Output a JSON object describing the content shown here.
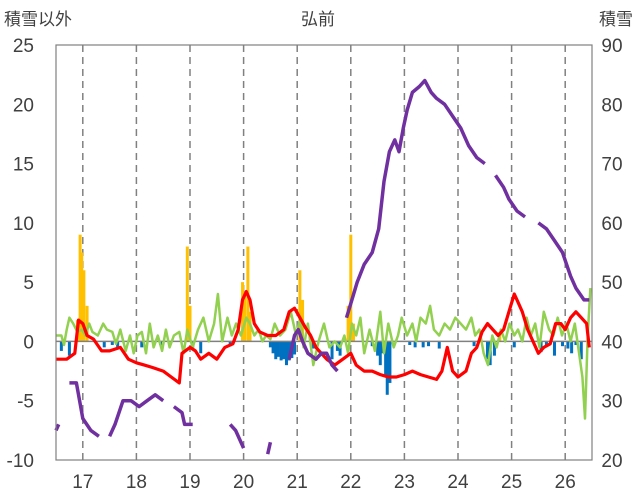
{
  "chart_data": {
    "type": "bar+line",
    "title": "弘前",
    "left_axis_title": "積雪以外",
    "right_axis_title": "積雪",
    "left_ylim": [
      -10,
      25
    ],
    "left_ticks": [
      -10,
      -5,
      0,
      5,
      10,
      15,
      20,
      25
    ],
    "right_ylim": [
      20,
      90
    ],
    "right_ticks": [
      20,
      30,
      40,
      50,
      60,
      70,
      80,
      90
    ],
    "x_ticks": [
      "17",
      "18",
      "19",
      "20",
      "21",
      "22",
      "23",
      "24",
      "25",
      "26"
    ],
    "xlim": [
      16.5,
      26.5
    ],
    "grid": "vertical dashed at each year",
    "colors": {
      "precip_positive": "#FFC000",
      "precip_negative": "#0070C0",
      "red_line": "#FF0000",
      "green_line": "#92D050",
      "purple_line": "#7030A0",
      "grid": "#808080",
      "axis_text": "#404040"
    },
    "series_purple_snow_depth_right_axis": [
      [
        16.5,
        25
      ],
      [
        16.55,
        26
      ],
      [
        16.75,
        33
      ],
      [
        16.88,
        33
      ],
      [
        17.0,
        27
      ],
      [
        17.15,
        25
      ],
      [
        17.3,
        24
      ],
      [
        17.5,
        24
      ],
      [
        17.6,
        26
      ],
      [
        17.75,
        30
      ],
      [
        17.9,
        30
      ],
      [
        18.05,
        29
      ],
      [
        18.2,
        30
      ],
      [
        18.35,
        31
      ],
      [
        18.5,
        30
      ],
      [
        18.7,
        29
      ],
      [
        18.85,
        28
      ],
      [
        18.9,
        26
      ],
      [
        19.05,
        26
      ],
      [
        19.3,
        26
      ],
      [
        19.5,
        26
      ],
      [
        19.75,
        26
      ],
      [
        19.85,
        25
      ],
      [
        20.0,
        22
      ],
      [
        20.2,
        21
      ],
      [
        20.45,
        21
      ],
      [
        20.5,
        23
      ],
      [
        20.85,
        37
      ],
      [
        20.95,
        41
      ],
      [
        21.02,
        42
      ],
      [
        21.1,
        40
      ],
      [
        21.2,
        38
      ],
      [
        21.35,
        37
      ],
      [
        21.45,
        38
      ],
      [
        21.55,
        38
      ],
      [
        21.65,
        36
      ],
      [
        21.75,
        35
      ],
      [
        21.92,
        44
      ],
      [
        22.02,
        47
      ],
      [
        22.12,
        50
      ],
      [
        22.25,
        53
      ],
      [
        22.4,
        55
      ],
      [
        22.52,
        59
      ],
      [
        22.62,
        67
      ],
      [
        22.72,
        72
      ],
      [
        22.82,
        74
      ],
      [
        22.9,
        72
      ],
      [
        22.98,
        76
      ],
      [
        23.05,
        79
      ],
      [
        23.15,
        82
      ],
      [
        23.28,
        83
      ],
      [
        23.38,
        84
      ],
      [
        23.5,
        82
      ],
      [
        23.6,
        81
      ],
      [
        23.75,
        80
      ],
      [
        23.9,
        78
      ],
      [
        24.05,
        76
      ],
      [
        24.2,
        73
      ],
      [
        24.35,
        71
      ],
      [
        24.5,
        70
      ],
      [
        24.7,
        68
      ],
      [
        24.85,
        66
      ],
      [
        24.95,
        64
      ],
      [
        25.1,
        62
      ],
      [
        25.25,
        61
      ],
      [
        25.5,
        60
      ],
      [
        25.65,
        59
      ],
      [
        25.8,
        57
      ],
      [
        25.95,
        55
      ],
      [
        26.1,
        51
      ],
      [
        26.2,
        49
      ],
      [
        26.35,
        47
      ],
      [
        26.45,
        47
      ]
    ],
    "series_red_left_axis": [
      [
        16.5,
        -1.5
      ],
      [
        16.7,
        -1.5
      ],
      [
        16.85,
        -1.0
      ],
      [
        16.92,
        1.8
      ],
      [
        17.0,
        1.5
      ],
      [
        17.08,
        0.5
      ],
      [
        17.2,
        0.2
      ],
      [
        17.35,
        -0.8
      ],
      [
        17.5,
        -0.8
      ],
      [
        17.7,
        -0.5
      ],
      [
        17.85,
        -1.5
      ],
      [
        18.0,
        -1.8
      ],
      [
        18.15,
        -2.0
      ],
      [
        18.3,
        -2.2
      ],
      [
        18.5,
        -2.5
      ],
      [
        18.65,
        -3.0
      ],
      [
        18.8,
        -3.5
      ],
      [
        18.85,
        -1.0
      ],
      [
        19.0,
        -0.5
      ],
      [
        19.1,
        -0.8
      ],
      [
        19.2,
        -1.5
      ],
      [
        19.35,
        -1.0
      ],
      [
        19.5,
        -1.5
      ],
      [
        19.65,
        -0.5
      ],
      [
        19.8,
        -0.2
      ],
      [
        19.9,
        1.0
      ],
      [
        19.98,
        3.5
      ],
      [
        20.05,
        4.2
      ],
      [
        20.12,
        3.5
      ],
      [
        20.2,
        1.5
      ],
      [
        20.3,
        0.8
      ],
      [
        20.45,
        0.5
      ],
      [
        20.6,
        0.5
      ],
      [
        20.75,
        1.0
      ],
      [
        20.85,
        2.5
      ],
      [
        20.95,
        2.8
      ],
      [
        21.05,
        2.0
      ],
      [
        21.15,
        1.2
      ],
      [
        21.25,
        0.5
      ],
      [
        21.35,
        -0.5
      ],
      [
        21.45,
        -1.0
      ],
      [
        21.55,
        -1.5
      ],
      [
        21.7,
        -2.0
      ],
      [
        21.85,
        -1.5
      ],
      [
        22.0,
        -1.0
      ],
      [
        22.1,
        -2.0
      ],
      [
        22.25,
        -2.5
      ],
      [
        22.4,
        -2.5
      ],
      [
        22.55,
        -2.8
      ],
      [
        22.7,
        -3.0
      ],
      [
        22.85,
        -3.0
      ],
      [
        23.0,
        -2.8
      ],
      [
        23.15,
        -2.5
      ],
      [
        23.3,
        -2.8
      ],
      [
        23.45,
        -3.0
      ],
      [
        23.6,
        -3.2
      ],
      [
        23.7,
        -2.5
      ],
      [
        23.8,
        -0.5
      ],
      [
        23.9,
        -2.5
      ],
      [
        24.0,
        -3.0
      ],
      [
        24.15,
        -2.5
      ],
      [
        24.25,
        -1.0
      ],
      [
        24.35,
        -0.5
      ],
      [
        24.45,
        0.8
      ],
      [
        24.55,
        1.5
      ],
      [
        24.65,
        1.0
      ],
      [
        24.75,
        0.5
      ],
      [
        24.85,
        1.0
      ],
      [
        24.95,
        2.5
      ],
      [
        25.05,
        4.0
      ],
      [
        25.1,
        3.5
      ],
      [
        25.2,
        2.5
      ],
      [
        25.3,
        1.0
      ],
      [
        25.4,
        0.0
      ],
      [
        25.5,
        -1.0
      ],
      [
        25.6,
        -0.5
      ],
      [
        25.72,
        -0.2
      ],
      [
        25.82,
        1.5
      ],
      [
        25.92,
        1.5
      ],
      [
        26.0,
        1.0
      ],
      [
        26.1,
        2.0
      ],
      [
        26.2,
        2.5
      ],
      [
        26.3,
        2.0
      ],
      [
        26.4,
        1.5
      ],
      [
        26.45,
        -0.5
      ]
    ],
    "series_green_left_axis": [
      [
        16.5,
        0.5
      ],
      [
        16.6,
        0.5
      ],
      [
        16.65,
        -0.3
      ],
      [
        16.7,
        1.0
      ],
      [
        16.75,
        2.0
      ],
      [
        16.82,
        1.5
      ],
      [
        16.9,
        0.8
      ],
      [
        16.98,
        1.0
      ],
      [
        17.05,
        0.5
      ],
      [
        17.12,
        1.5
      ],
      [
        17.18,
        0.8
      ],
      [
        17.28,
        0.5
      ],
      [
        17.38,
        1.5
      ],
      [
        17.45,
        1.0
      ],
      [
        17.55,
        0.8
      ],
      [
        17.62,
        -0.2
      ],
      [
        17.7,
        1.0
      ],
      [
        17.8,
        -0.8
      ],
      [
        17.88,
        0.5
      ],
      [
        17.95,
        -1.0
      ],
      [
        18.02,
        0.5
      ],
      [
        18.1,
        0.8
      ],
      [
        18.18,
        -1.0
      ],
      [
        18.25,
        1.5
      ],
      [
        18.32,
        -0.5
      ],
      [
        18.4,
        0.5
      ],
      [
        18.48,
        -0.8
      ],
      [
        18.55,
        1.0
      ],
      [
        18.62,
        -0.5
      ],
      [
        18.7,
        0.5
      ],
      [
        18.8,
        0.8
      ],
      [
        18.88,
        -1.0
      ],
      [
        18.95,
        1.0
      ],
      [
        19.05,
        -0.5
      ],
      [
        19.15,
        1.0
      ],
      [
        19.25,
        2.0
      ],
      [
        19.35,
        0.0
      ],
      [
        19.45,
        1.5
      ],
      [
        19.52,
        4.0
      ],
      [
        19.6,
        0.0
      ],
      [
        19.7,
        2.0
      ],
      [
        19.78,
        0.5
      ],
      [
        19.86,
        1.5
      ],
      [
        19.95,
        0.5
      ],
      [
        20.05,
        2.0
      ],
      [
        20.12,
        1.5
      ],
      [
        20.2,
        0.5
      ],
      [
        20.28,
        1.0
      ],
      [
        20.35,
        0.0
      ],
      [
        20.42,
        0.5
      ],
      [
        20.5,
        0.2
      ],
      [
        20.58,
        1.5
      ],
      [
        20.68,
        0.5
      ],
      [
        20.78,
        1.0
      ],
      [
        20.88,
        2.5
      ],
      [
        20.98,
        0.5
      ],
      [
        21.06,
        2.0
      ],
      [
        21.12,
        -0.5
      ],
      [
        21.2,
        1.5
      ],
      [
        21.3,
        -2.0
      ],
      [
        21.4,
        0.0
      ],
      [
        21.5,
        1.5
      ],
      [
        21.6,
        -0.5
      ],
      [
        21.7,
        0.0
      ],
      [
        21.8,
        -0.5
      ],
      [
        21.88,
        0.5
      ],
      [
        21.95,
        -1.0
      ],
      [
        22.02,
        1.5
      ],
      [
        22.1,
        0.5
      ],
      [
        22.18,
        2.0
      ],
      [
        22.25,
        -1.0
      ],
      [
        22.35,
        1.0
      ],
      [
        22.45,
        -0.8
      ],
      [
        22.55,
        2.5
      ],
      [
        22.62,
        -1.0
      ],
      [
        22.7,
        1.5
      ],
      [
        22.8,
        -0.5
      ],
      [
        22.88,
        0.5
      ],
      [
        22.95,
        2.0
      ],
      [
        23.05,
        0.5
      ],
      [
        23.15,
        1.5
      ],
      [
        23.22,
        0.0
      ],
      [
        23.3,
        2.0
      ],
      [
        23.4,
        1.5
      ],
      [
        23.48,
        3.0
      ],
      [
        23.55,
        1.0
      ],
      [
        23.65,
        0.5
      ],
      [
        23.75,
        1.5
      ],
      [
        23.85,
        1.0
      ],
      [
        23.95,
        2.0
      ],
      [
        24.05,
        1.5
      ],
      [
        24.15,
        1.0
      ],
      [
        24.25,
        2.0
      ],
      [
        24.32,
        0.5
      ],
      [
        24.4,
        1.0
      ],
      [
        24.48,
        -1.0
      ],
      [
        24.56,
        -2.0
      ],
      [
        24.64,
        0.5
      ],
      [
        24.72,
        -0.5
      ],
      [
        24.8,
        1.0
      ],
      [
        24.88,
        0.0
      ],
      [
        24.96,
        1.5
      ],
      [
        25.05,
        0.5
      ],
      [
        25.12,
        1.0
      ],
      [
        25.2,
        0.0
      ],
      [
        25.28,
        2.0
      ],
      [
        25.36,
        0.5
      ],
      [
        25.44,
        1.5
      ],
      [
        25.52,
        -0.5
      ],
      [
        25.6,
        2.5
      ],
      [
        25.7,
        1.0
      ],
      [
        25.78,
        0.5
      ],
      [
        25.86,
        2.0
      ],
      [
        25.94,
        0.5
      ],
      [
        26.02,
        1.5
      ],
      [
        26.1,
        0.0
      ],
      [
        26.18,
        1.5
      ],
      [
        26.26,
        -1.0
      ],
      [
        26.32,
        -3.0
      ],
      [
        26.37,
        -6.5
      ],
      [
        26.42,
        0.5
      ],
      [
        26.47,
        4.5
      ]
    ],
    "series_bars_left_axis": [
      [
        16.6,
        -0.8
      ],
      [
        16.75,
        -1.2
      ],
      [
        16.9,
        1.8
      ],
      [
        16.95,
        9.0
      ],
      [
        16.98,
        7.5
      ],
      [
        17.02,
        6.0
      ],
      [
        17.08,
        3.0
      ],
      [
        17.4,
        -0.5
      ],
      [
        17.55,
        -0.3
      ],
      [
        17.65,
        -0.6
      ],
      [
        18.1,
        -0.5
      ],
      [
        18.45,
        -0.3
      ],
      [
        18.95,
        8.0
      ],
      [
        19.0,
        3.0
      ],
      [
        19.05,
        -0.6
      ],
      [
        19.2,
        -1.0
      ],
      [
        19.75,
        -0.4
      ],
      [
        19.98,
        5.0
      ],
      [
        20.02,
        4.0
      ],
      [
        20.08,
        8.0
      ],
      [
        20.12,
        2.5
      ],
      [
        20.5,
        -0.5
      ],
      [
        20.55,
        -1.0
      ],
      [
        20.6,
        -1.5
      ],
      [
        20.65,
        -1.3
      ],
      [
        20.7,
        -1.6
      ],
      [
        20.75,
        -1.5
      ],
      [
        20.8,
        -2.0
      ],
      [
        20.85,
        -1.6
      ],
      [
        20.9,
        -1.4
      ],
      [
        20.95,
        -1.1
      ],
      [
        21.05,
        6.0
      ],
      [
        21.1,
        3.5
      ],
      [
        21.3,
        -0.6
      ],
      [
        21.65,
        -1.5
      ],
      [
        21.75,
        -0.8
      ],
      [
        21.8,
        -1.2
      ],
      [
        21.95,
        3.0
      ],
      [
        22.0,
        9.0
      ],
      [
        22.05,
        1.5
      ],
      [
        22.4,
        -0.4
      ],
      [
        22.5,
        -1.2
      ],
      [
        22.55,
        -2.0
      ],
      [
        22.6,
        -1.0
      ],
      [
        22.65,
        -3.0
      ],
      [
        22.68,
        -4.5
      ],
      [
        22.73,
        -3.5
      ],
      [
        23.1,
        -0.3
      ],
      [
        23.2,
        -0.5
      ],
      [
        23.35,
        -0.5
      ],
      [
        23.45,
        -0.4
      ],
      [
        23.65,
        -0.6
      ],
      [
        24.3,
        -0.4
      ],
      [
        24.55,
        -1.5
      ],
      [
        24.6,
        -2.0
      ],
      [
        24.68,
        -1.2
      ],
      [
        24.78,
        0.8
      ],
      [
        25.05,
        -0.5
      ],
      [
        25.55,
        -0.9
      ],
      [
        25.65,
        -0.3
      ],
      [
        25.8,
        -1.2
      ],
      [
        25.95,
        -0.4
      ],
      [
        26.05,
        -0.6
      ],
      [
        26.12,
        -1.0
      ],
      [
        26.2,
        -0.3
      ],
      [
        26.3,
        -1.5
      ]
    ]
  }
}
